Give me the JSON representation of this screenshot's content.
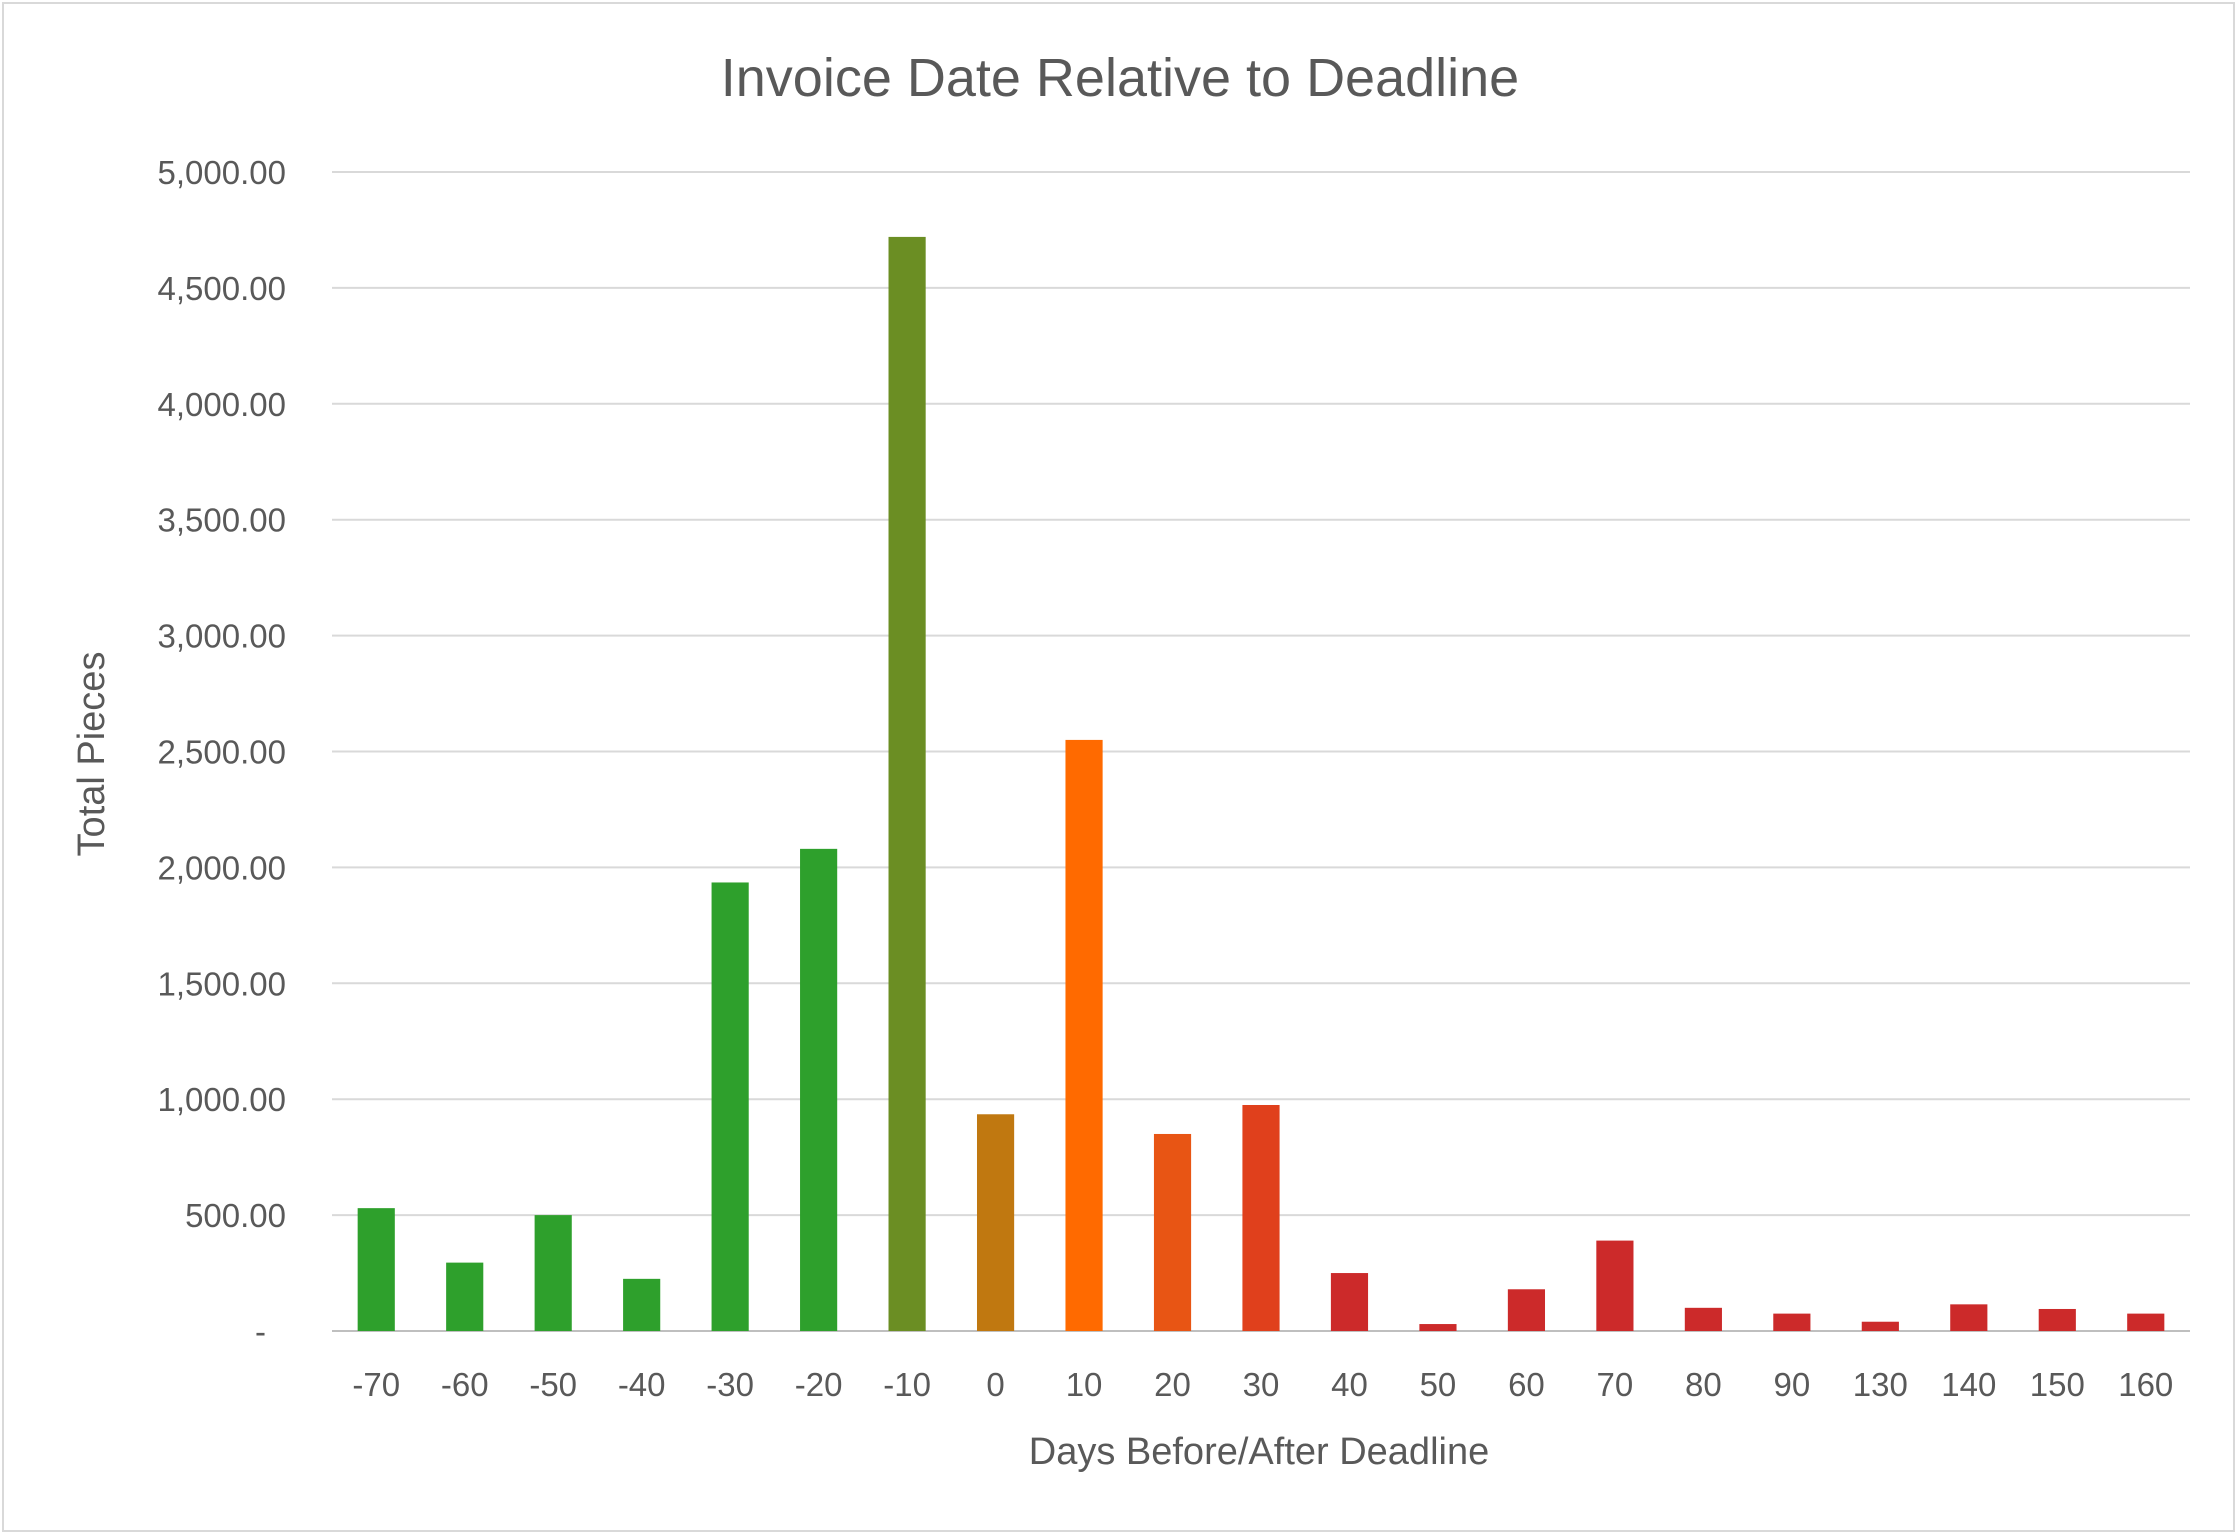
{
  "chart_data": {
    "type": "bar",
    "title": "Invoice Date Relative to Deadline",
    "xlabel": "Days Before/After Deadline",
    "ylabel": "Total Pieces",
    "categories": [
      "-70",
      "-60",
      "-50",
      "-40",
      "-30",
      "-20",
      "-10",
      "0",
      "10",
      "20",
      "30",
      "40",
      "50",
      "60",
      "70",
      "80",
      "90",
      "130",
      "140",
      "150",
      "160"
    ],
    "values": [
      530,
      295,
      500,
      225,
      1935,
      2080,
      4720,
      935,
      2550,
      850,
      975,
      250,
      30,
      180,
      390,
      100,
      75,
      40,
      115,
      95,
      75
    ],
    "bar_colors": [
      "#2ea02c",
      "#2ea02c",
      "#2ea02c",
      "#2ea02c",
      "#2ea02c",
      "#2ea02c",
      "#6b8e23",
      "#c07810",
      "#ff6a00",
      "#e85514",
      "#e0401c",
      "#cc2a2a",
      "#cc2a2a",
      "#cc2a2a",
      "#cc2a2a",
      "#cc2a2a",
      "#cc2a2a",
      "#cc2a2a",
      "#cc2a2a",
      "#cc2a2a",
      "#cc2a2a"
    ],
    "ylim": [
      0,
      5000
    ],
    "yticks": [
      0,
      500,
      1000,
      1500,
      2000,
      2500,
      3000,
      3500,
      4000,
      4500,
      5000
    ],
    "ytick_labels": [
      "-",
      "500.00",
      "1,000.00",
      "1,500.00",
      "2,000.00",
      "2,500.00",
      "3,000.00",
      "3,500.00",
      "4,000.00",
      "4,500.00",
      "5,000.00"
    ],
    "grid": true,
    "legend": "none"
  }
}
